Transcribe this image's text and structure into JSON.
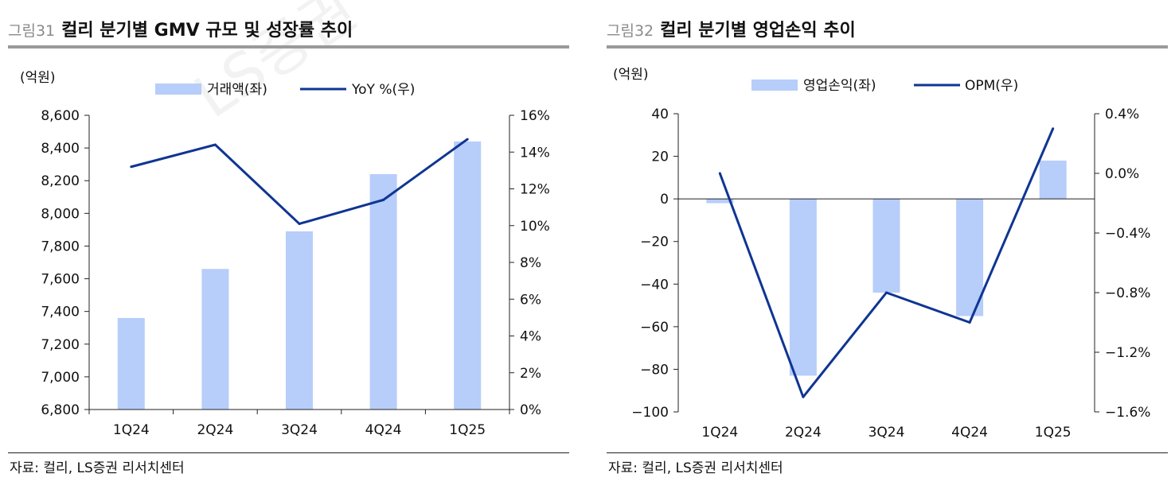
{
  "watermark": "LS증권 리서치센터",
  "figures": [
    {
      "number": "그림31",
      "title": "컬리 분기별 GMV 규모 및 성장률 추이",
      "unit": "(억원)",
      "source": "자료:  컬리, LS증권 리서치센터",
      "legend": {
        "bar": "거래액(좌)",
        "line": "YoY %(우)"
      }
    },
    {
      "number": "그림32",
      "title": "컬리 분기별 영업손익 추이",
      "unit": "(억원)",
      "source": "자료:  컬리, LS증권 리서치센터",
      "legend": {
        "bar": "영업손익(좌)",
        "line": "OPM(우)"
      }
    }
  ],
  "colors": {
    "bar": "#b7cdfa",
    "line": "#0f3593",
    "axis": "#222222"
  },
  "chart_data": [
    {
      "type": "bar",
      "title": "컬리 분기별 GMV 규모 및 성장률 추이",
      "categories": [
        "1Q24",
        "2Q24",
        "3Q24",
        "4Q24",
        "1Q25"
      ],
      "series": [
        {
          "name": "거래액(좌)",
          "type": "bar",
          "axis": "left",
          "values": [
            7360,
            7660,
            7890,
            8240,
            8440
          ]
        },
        {
          "name": "YoY %(우)",
          "type": "line",
          "axis": "right",
          "values": [
            13.2,
            14.4,
            10.1,
            11.4,
            14.7
          ]
        }
      ],
      "ylabel": "(억원)",
      "ylim": [
        6800,
        8600
      ],
      "yticks": [
        6800,
        7000,
        7200,
        7400,
        7600,
        7800,
        8000,
        8200,
        8400,
        8600
      ],
      "ytick_labels": [
        "6,800",
        "7,000",
        "7,200",
        "7,400",
        "7,600",
        "7,800",
        "8,000",
        "8,200",
        "8,400",
        "8,600"
      ],
      "y2lim": [
        0,
        16
      ],
      "y2ticks": [
        0,
        2,
        4,
        6,
        8,
        10,
        12,
        14,
        16
      ],
      "y2tick_labels": [
        "0%",
        "2%",
        "4%",
        "6%",
        "8%",
        "10%",
        "12%",
        "14%",
        "16%"
      ],
      "legend": "top"
    },
    {
      "type": "bar",
      "title": "컬리 분기별 영업손익 추이",
      "categories": [
        "1Q24",
        "2Q24",
        "3Q24",
        "4Q24",
        "1Q25"
      ],
      "series": [
        {
          "name": "영업손익(좌)",
          "type": "bar",
          "axis": "left",
          "values": [
            -2,
            -83,
            -44,
            -55,
            18
          ]
        },
        {
          "name": "OPM(우)",
          "type": "line",
          "axis": "right",
          "values": [
            0.0,
            -1.5,
            -0.8,
            -1.0,
            0.3
          ]
        }
      ],
      "ylabel": "(억원)",
      "ylim": [
        -100,
        40
      ],
      "yticks": [
        -100,
        -80,
        -60,
        -40,
        -20,
        0,
        20,
        40
      ],
      "ytick_labels": [
        "−100",
        "−80",
        "−60",
        "−40",
        "−20",
        "0",
        "20",
        "40"
      ],
      "y2lim": [
        -1.6,
        0.4
      ],
      "y2ticks": [
        -1.6,
        -1.2,
        -0.8,
        -0.4,
        0.0,
        0.4
      ],
      "y2tick_labels": [
        "−1.6%",
        "−1.2%",
        "−0.8%",
        "−0.4%",
        "0.0%",
        "0.4%"
      ],
      "legend": "top"
    }
  ]
}
